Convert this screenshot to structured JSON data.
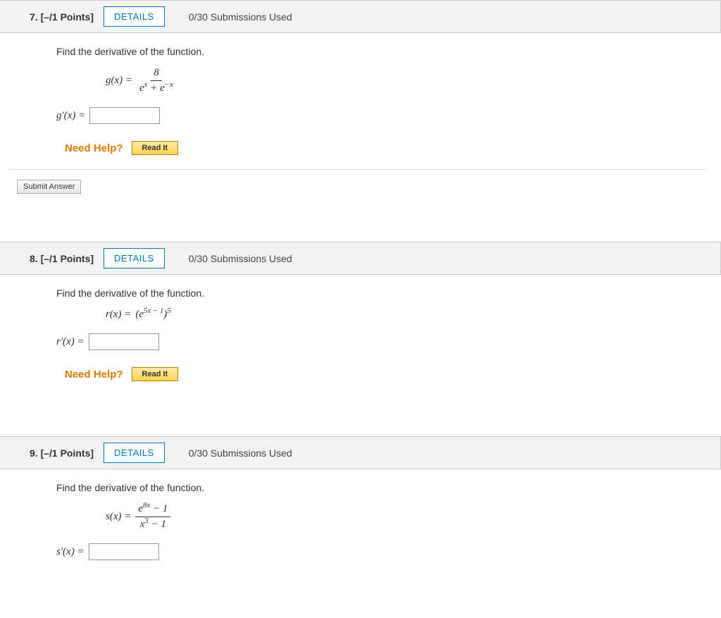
{
  "questions": [
    {
      "number": "7.",
      "points": "[–/1 Points]",
      "details_label": "DETAILS",
      "submissions": "0/30 Submissions Used",
      "prompt": "Find the derivative of the function.",
      "func_lhs": "g(x) = ",
      "frac_num": "8",
      "frac_den_html": "e<sup>x</sup> + e<sup>−x</sup>",
      "answer_lhs": "g'(x) = ",
      "need_help": "Need Help?",
      "read_it": "Read It",
      "submit": "Submit Answer",
      "show_submit": true,
      "eq_style": "frac"
    },
    {
      "number": "8.",
      "points": "[–/1 Points]",
      "details_label": "DETAILS",
      "submissions": "0/30 Submissions Used",
      "prompt": "Find the derivative of the function.",
      "func_lhs": "r(x) = ",
      "inline_rhs_html": "(e<sup>5x − 1</sup>)<sup>5</sup>",
      "answer_lhs": "r'(x) = ",
      "need_help": "Need Help?",
      "read_it": "Read It",
      "show_submit": false,
      "eq_style": "inline"
    },
    {
      "number": "9.",
      "points": "[–/1 Points]",
      "details_label": "DETAILS",
      "submissions": "0/30 Submissions Used",
      "prompt": "Find the derivative of the function.",
      "func_lhs": "s(x) = ",
      "frac_num_html": "e<sup>8x</sup> − 1",
      "frac_den_html": "x<sup>3</sup> − 1",
      "answer_lhs": "s'(x) = ",
      "show_submit": false,
      "eq_style": "frac"
    }
  ]
}
